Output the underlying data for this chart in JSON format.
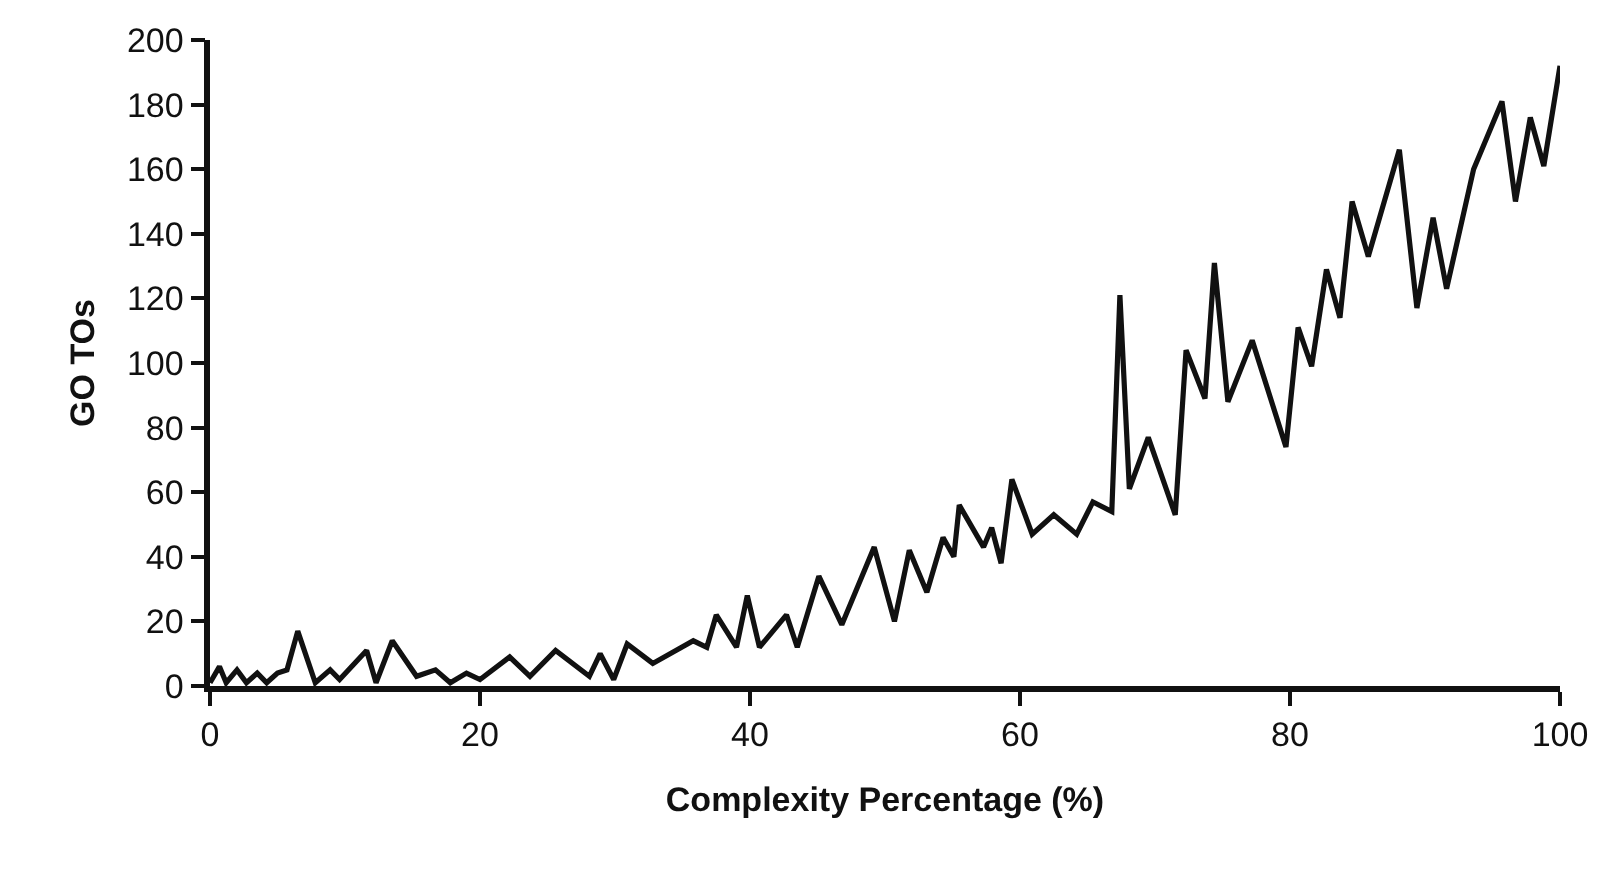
{
  "chart_data": {
    "type": "line",
    "xlabel": "Complexity Percentage (%)",
    "ylabel": "GO TOs",
    "x": [
      0,
      0.7,
      1.2,
      2,
      2.7,
      3.5,
      4.2,
      5,
      5.7,
      6.5,
      7.8,
      8.9,
      9.6,
      11.6,
      12.3,
      13.5,
      15.3,
      16.7,
      17.8,
      19,
      20,
      22.2,
      23.7,
      25.6,
      28.1,
      28.9,
      29.9,
      30.9,
      32.8,
      35.8,
      36.8,
      37.5,
      39,
      39.8,
      40.7,
      42.7,
      43.5,
      45.1,
      46.8,
      49.2,
      50.7,
      51.8,
      53.1,
      54.3,
      55.1,
      55.5,
      57.3,
      57.9,
      58.6,
      59.4,
      60.9,
      62.5,
      64.2,
      65.4,
      66.8,
      67.4,
      68.1,
      69.5,
      71.5,
      72.3,
      73.7,
      74.4,
      75.4,
      77.2,
      79.7,
      80.6,
      81.6,
      82.7,
      83.7,
      84.6,
      85.8,
      88.1,
      89.4,
      90.6,
      91.6,
      93.6,
      95.7,
      96.7,
      97.8,
      98.8,
      100
    ],
    "series": [
      {
        "color": "#111111",
        "values": [
          1,
          6,
          1,
          5,
          1,
          4,
          1,
          4,
          5,
          17,
          1,
          5,
          2,
          11,
          1,
          14,
          3,
          5,
          1,
          4,
          2,
          9,
          3,
          11,
          3,
          10,
          2,
          13,
          7,
          14,
          12,
          22,
          12,
          28,
          12,
          22,
          12,
          34,
          19,
          43,
          20,
          42,
          29,
          46,
          40,
          56,
          43,
          49,
          38,
          64,
          47,
          53,
          47,
          57,
          54,
          121,
          61,
          77,
          53,
          104,
          89,
          131,
          88,
          107,
          74,
          111,
          99,
          129,
          114,
          150,
          133,
          166,
          117,
          145,
          123,
          160,
          181,
          150,
          176,
          161,
          192
        ]
      }
    ],
    "xlim": [
      0,
      100
    ],
    "xticks": [
      0,
      20,
      40,
      60,
      80,
      100
    ],
    "ylim": [
      0,
      200
    ],
    "yticks": [
      0,
      20,
      40,
      60,
      80,
      100,
      120,
      140,
      160,
      180,
      200
    ],
    "grid": false,
    "marker": "none",
    "line_style": "solid"
  }
}
